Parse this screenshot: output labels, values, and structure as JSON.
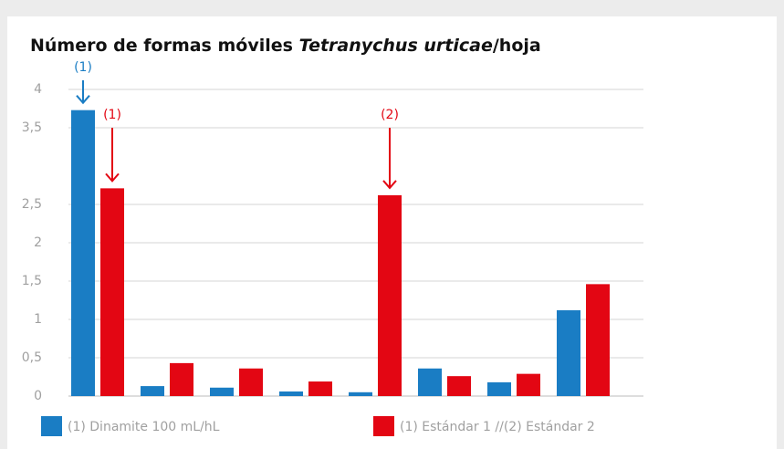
{
  "chart_data": {
    "type": "bar",
    "title": [
      "Número de formas móviles ",
      "Tetranychus urticae",
      "/hoja"
    ],
    "categories": [
      null,
      null,
      null,
      null,
      null,
      null,
      null,
      null
    ],
    "series": [
      {
        "name": "(1) Dinamite 100 mL/hL",
        "color": "#1a7dc4",
        "values": [
          3.73,
          0.13,
          0.11,
          0.06,
          0.05,
          0.36,
          0.18,
          1.12
        ]
      },
      {
        "name": "(1) Estándar 1 //(2)  Estándar 2",
        "color": "#e30613",
        "values": [
          2.71,
          0.43,
          0.36,
          0.19,
          2.62,
          0.26,
          0.29,
          1.46
        ]
      }
    ],
    "annotations": [
      {
        "text": "(1)",
        "color": "#1a7dc4"
      },
      {
        "text": "(1)",
        "color": "#e30613"
      },
      {
        "text": "(2)",
        "color": "#e30613"
      }
    ],
    "ylim": [
      0,
      4
    ],
    "yticks": [
      0,
      {
        "value": 0.5,
        "label": "0,5"
      },
      1,
      {
        "value": 1.5,
        "label": "1,5"
      },
      2,
      {
        "value": 2.5,
        "label": "2,5"
      },
      {
        "value": 3.5,
        "label": "3,5"
      },
      4
    ],
    "grid": true
  }
}
